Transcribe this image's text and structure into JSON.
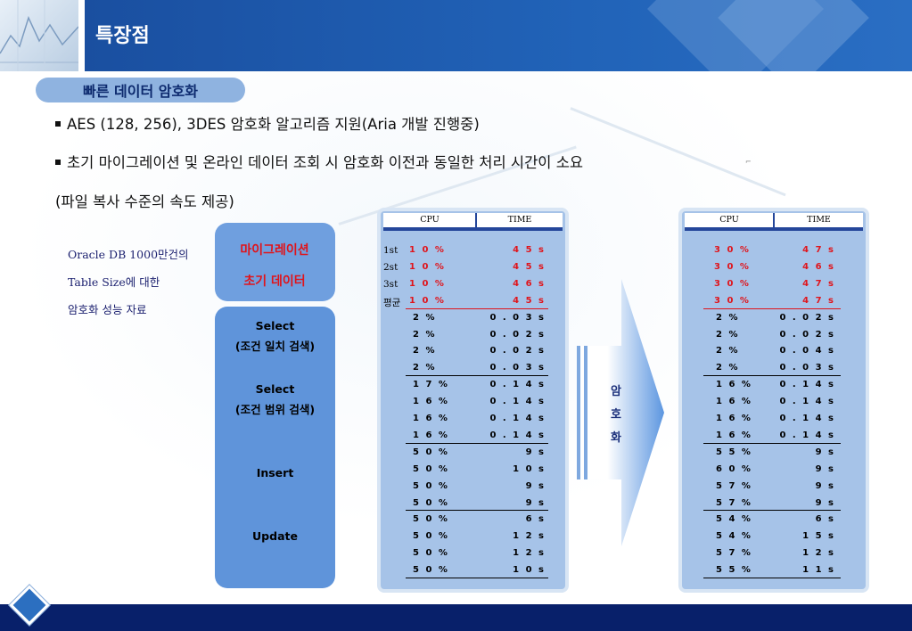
{
  "header": {
    "title": "특장점"
  },
  "section": {
    "pill": "빠른 데이터 암호화"
  },
  "bullets": [
    "AES (128, 256), 3DES 암호화  알고리즘 지원(Aria 개발 진행중)",
    "초기 마이그레이션  및 온라인 데이터   조회 시 암호화  이전과 동일한 처리 시간이 소요"
  ],
  "bullet_cont": "(파일 복사 수준의 속도 제공)",
  "note": [
    "Oracle DB 1000만건의",
    "Table Size에 대한",
    "암호화 성능 자료"
  ],
  "red_labels": [
    "마이그레이션",
    "초기 데이터"
  ],
  "categories": [
    {
      "l1": "Select",
      "l2": "(조건 일치 검색)"
    },
    {
      "l1": "Select",
      "l2": "(조건 범위 검색)"
    },
    {
      "l1": "Insert",
      "l2": ""
    },
    {
      "l1": "Update",
      "l2": ""
    }
  ],
  "arrow_text": [
    "암",
    "호",
    "화"
  ],
  "before": {
    "headers": {
      "cpu": "CPU",
      "time": "TIME"
    },
    "red_rows": [
      {
        "label": "1st",
        "cpu": "1 0 %",
        "time": "4 5 s"
      },
      {
        "label": "2st",
        "cpu": "1 0 %",
        "time": "4 5 s"
      },
      {
        "label": "3st",
        "cpu": "1 0 %",
        "time": "4 6 s"
      },
      {
        "label": "평균",
        "cpu": "1 0 %",
        "time": "4 5 s"
      }
    ],
    "rows": [
      {
        "cpu": "2 %",
        "time": "0 . 0 3 s"
      },
      {
        "cpu": "2 %",
        "time": "0 . 0 2 s"
      },
      {
        "cpu": "2 %",
        "time": "0 . 0 2 s"
      },
      {
        "cpu": "2 %",
        "time": "0 . 0 3 s"
      },
      {
        "cpu": "1 7 %",
        "time": "0 . 1 4 s"
      },
      {
        "cpu": "1 6 %",
        "time": "0 . 1 4 s"
      },
      {
        "cpu": "1 6 %",
        "time": "0 . 1 4 s"
      },
      {
        "cpu": "1 6 %",
        "time": "0 . 1 4 s"
      },
      {
        "cpu": "5 0 %",
        "time": "9 s"
      },
      {
        "cpu": "5 0 %",
        "time": "1 0 s"
      },
      {
        "cpu": "5 0 %",
        "time": "9 s"
      },
      {
        "cpu": "5 0 %",
        "time": "9 s"
      },
      {
        "cpu": "5 0 %",
        "time": "6 s"
      },
      {
        "cpu": "5 0 %",
        "time": "1 2 s"
      },
      {
        "cpu": "5 0 %",
        "time": "1 2 s"
      },
      {
        "cpu": "5 0 %",
        "time": "1 0 s"
      }
    ]
  },
  "after": {
    "headers": {
      "cpu": "CPU",
      "time": "TIME"
    },
    "red_rows": [
      {
        "cpu": "3 0 %",
        "time": "4 7 s"
      },
      {
        "cpu": "3 0 %",
        "time": "4 6 s"
      },
      {
        "cpu": "3 0 %",
        "time": "4 7 s"
      },
      {
        "cpu": "3 0 %",
        "time": "4 7 s"
      }
    ],
    "rows": [
      {
        "cpu": "2 %",
        "time": "0 . 0 2 s"
      },
      {
        "cpu": "2 %",
        "time": "0 . 0 2 s"
      },
      {
        "cpu": "2 %",
        "time": "0 . 0 4 s"
      },
      {
        "cpu": "2 %",
        "time": "0 . 0 3 s"
      },
      {
        "cpu": "1 6 %",
        "time": "0 . 1 4 s"
      },
      {
        "cpu": "1 6 %",
        "time": "0 . 1 4 s"
      },
      {
        "cpu": "1 6 %",
        "time": "0 . 1 4 s"
      },
      {
        "cpu": "1 6 %",
        "time": "0 . 1 4 s"
      },
      {
        "cpu": "5 5 %",
        "time": "9 s"
      },
      {
        "cpu": "6 0 %",
        "time": "9 s"
      },
      {
        "cpu": "5 7 %",
        "time": "9 s"
      },
      {
        "cpu": "5 7 %",
        "time": "9 s"
      },
      {
        "cpu": "5 4 %",
        "time": "6 s"
      },
      {
        "cpu": "5 4 %",
        "time": "1 5 s"
      },
      {
        "cpu": "5 7 %",
        "time": "1 2 s"
      },
      {
        "cpu": "5 5 %",
        "time": "1 1 s"
      }
    ]
  },
  "colors": {
    "header": "#1a4fa0",
    "footer": "#08206a",
    "panel": "#a6c3e8",
    "category_box": "#5f94da",
    "highlight_red": "#e0141b"
  }
}
